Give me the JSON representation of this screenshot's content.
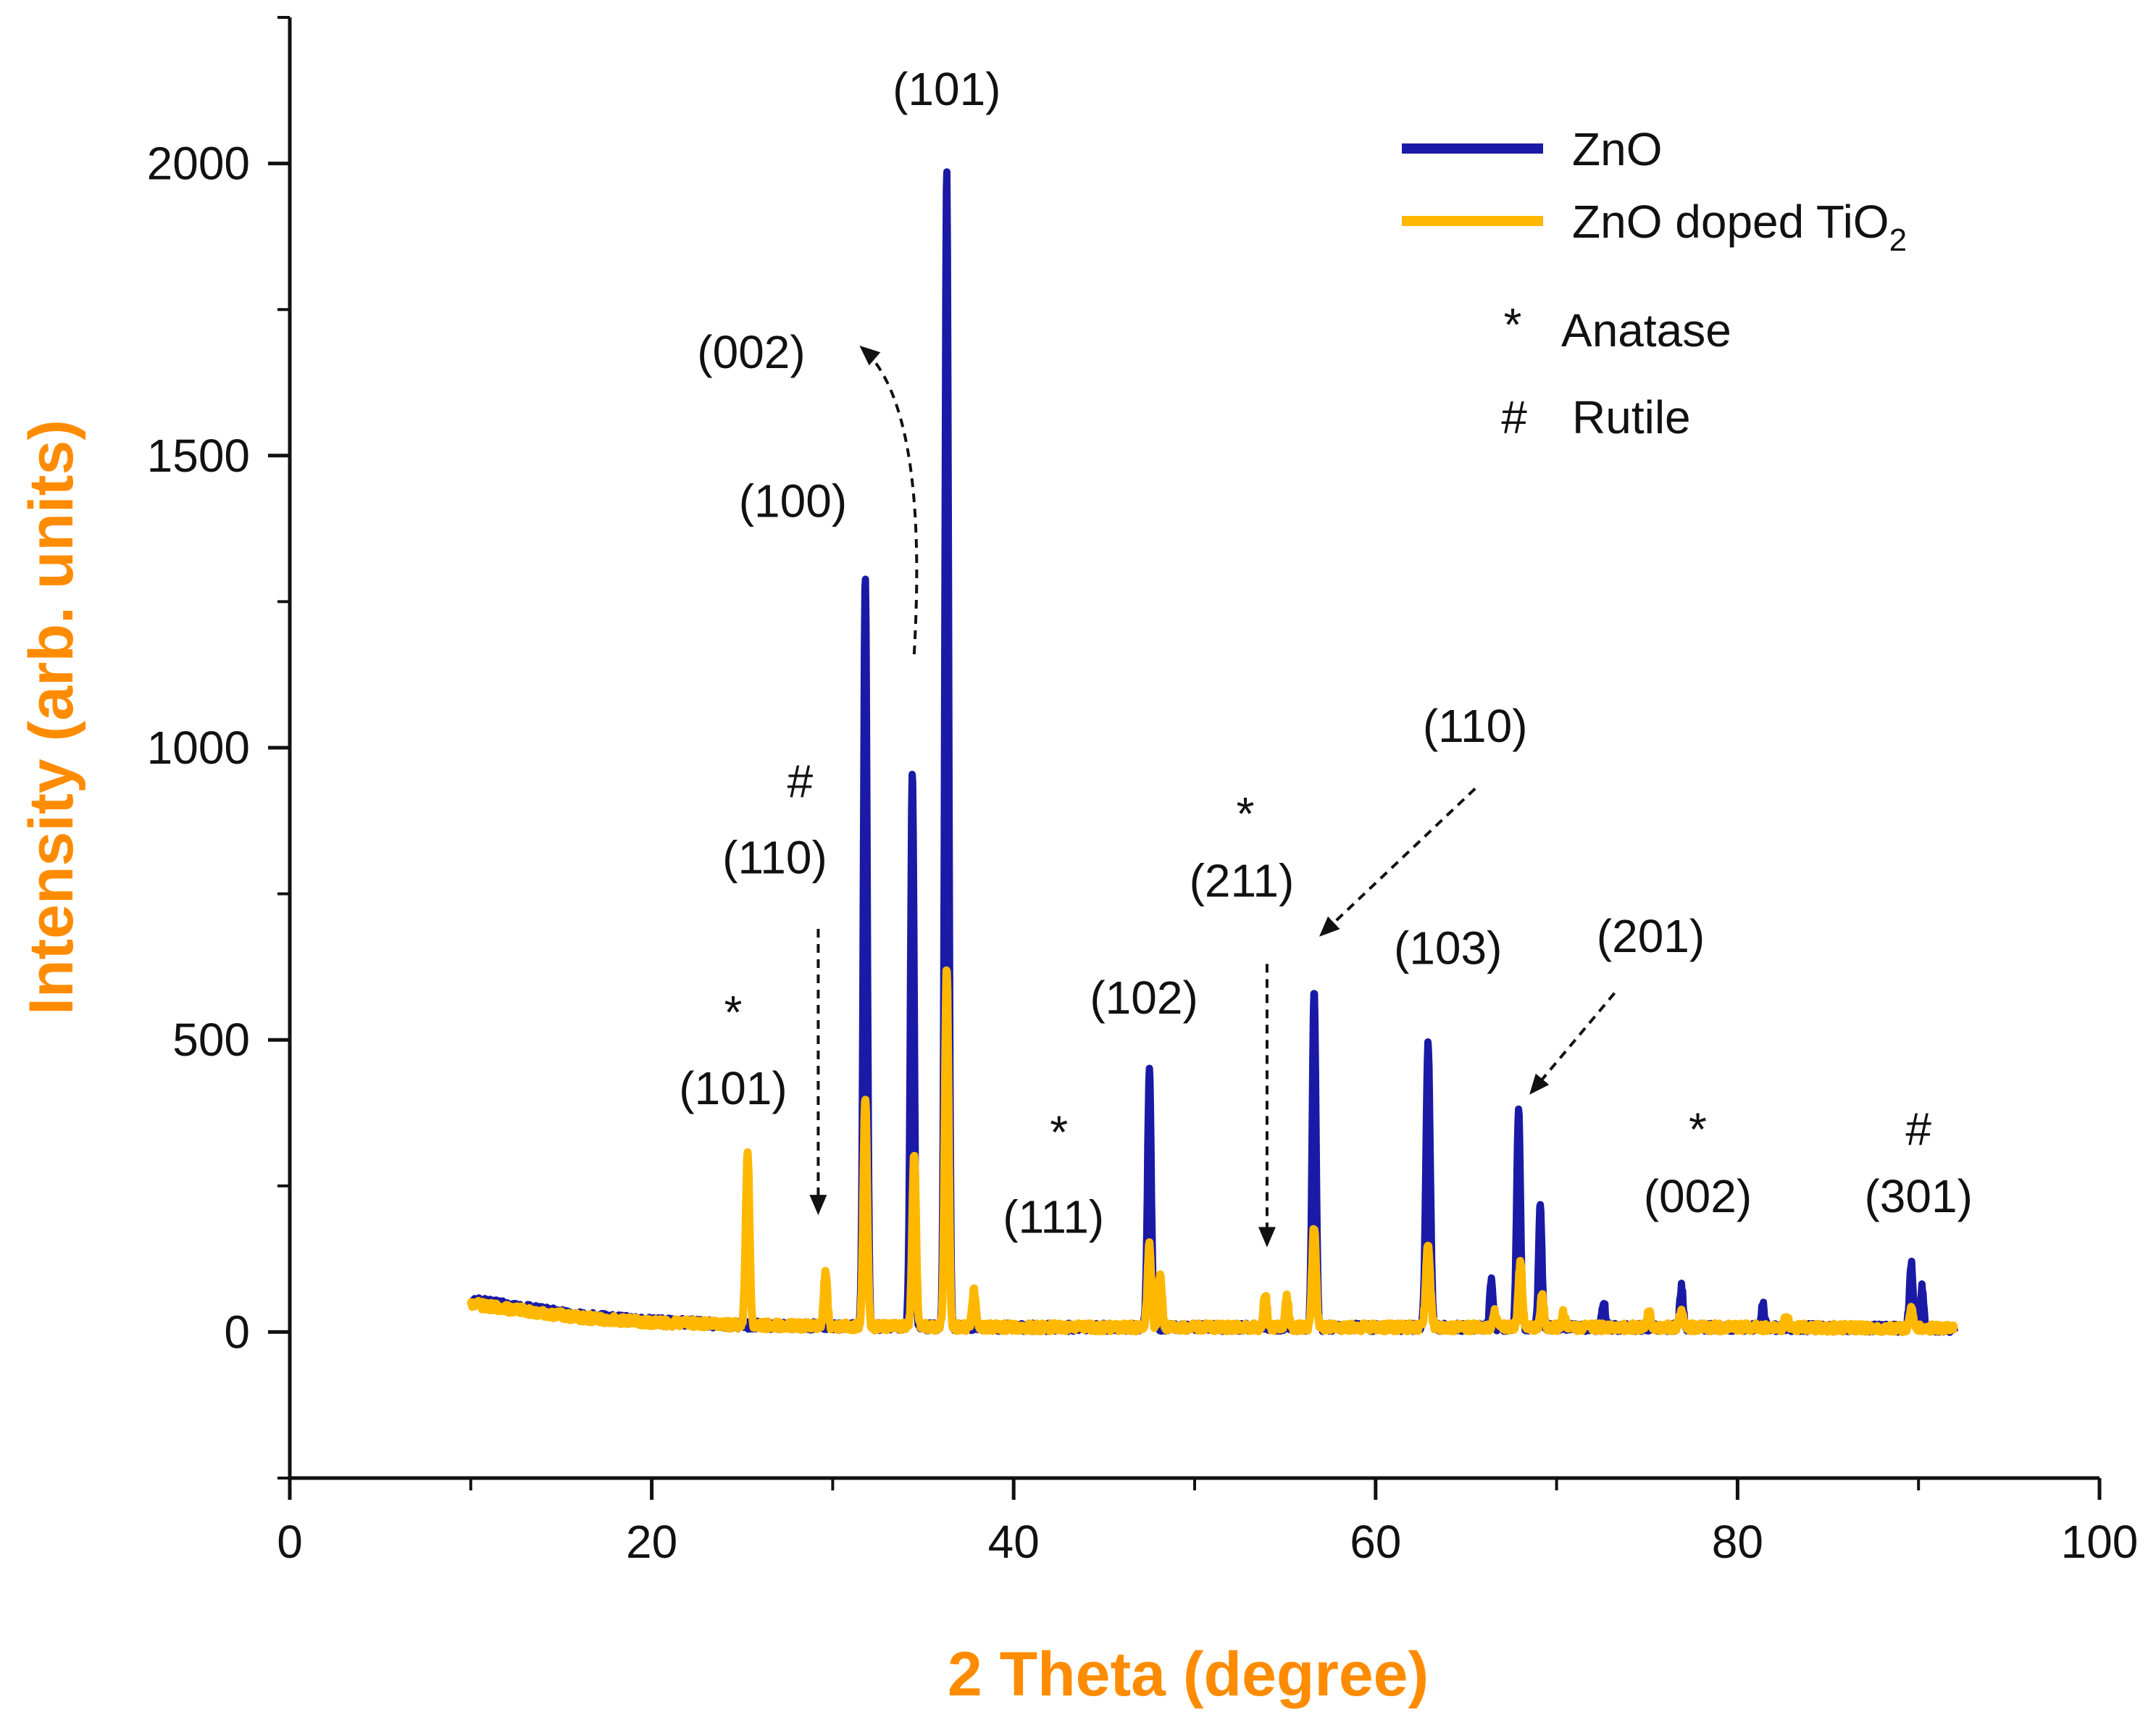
{
  "chart_data": {
    "type": "line",
    "title": "",
    "xlabel": "2 Theta (degree)",
    "ylabel": "Intensity (arb. units)",
    "xlim": [
      0,
      100
    ],
    "ylim": [
      -250,
      2250
    ],
    "xticks": [
      0,
      20,
      40,
      60,
      80,
      100
    ],
    "yticks": [
      0,
      500,
      1000,
      1500,
      2000
    ],
    "legend": {
      "placement": "top-right",
      "entries": [
        {
          "name": "ZnO",
          "color": "#1a1aa6"
        },
        {
          "name": "ZnO doped TiO",
          "subscript": "2",
          "color": "#ffb800"
        }
      ],
      "symbols": [
        {
          "symbol": "*",
          "label": "Anatase"
        },
        {
          "symbol": "#",
          "label": "Rutile"
        }
      ]
    },
    "series": [
      {
        "name": "ZnO",
        "color": "#1a1aa6",
        "baseline": [
          [
            10,
            55
          ],
          [
            12,
            45
          ],
          [
            16,
            28
          ],
          [
            20,
            18
          ],
          [
            25,
            12
          ],
          [
            30,
            10
          ],
          [
            40,
            8
          ],
          [
            50,
            8
          ],
          [
            60,
            8
          ],
          [
            70,
            8
          ],
          [
            80,
            8
          ],
          [
            92,
            6
          ]
        ],
        "peaks": [
          {
            "x": 31.8,
            "y": 1290,
            "w": 0.22
          },
          {
            "x": 34.4,
            "y": 950,
            "w": 0.22
          },
          {
            "x": 36.3,
            "y": 1980,
            "w": 0.22
          },
          {
            "x": 47.5,
            "y": 440,
            "w": 0.22
          },
          {
            "x": 56.6,
            "y": 580,
            "w": 0.22
          },
          {
            "x": 62.9,
            "y": 485,
            "w": 0.25
          },
          {
            "x": 66.4,
            "y": 80,
            "w": 0.2
          },
          {
            "x": 67.9,
            "y": 375,
            "w": 0.22
          },
          {
            "x": 69.1,
            "y": 210,
            "w": 0.2
          },
          {
            "x": 72.6,
            "y": 45,
            "w": 0.2
          },
          {
            "x": 76.9,
            "y": 70,
            "w": 0.2
          },
          {
            "x": 81.4,
            "y": 38,
            "w": 0.2
          },
          {
            "x": 89.6,
            "y": 110,
            "w": 0.22
          },
          {
            "x": 90.2,
            "y": 70,
            "w": 0.18
          }
        ]
      },
      {
        "name": "ZnO doped TiO2",
        "color": "#ffb800",
        "baseline": [
          [
            10,
            48
          ],
          [
            12,
            40
          ],
          [
            16,
            25
          ],
          [
            20,
            16
          ],
          [
            25,
            12
          ],
          [
            30,
            10
          ],
          [
            40,
            8
          ],
          [
            50,
            8
          ],
          [
            60,
            8
          ],
          [
            70,
            8
          ],
          [
            80,
            8
          ],
          [
            92,
            6
          ]
        ],
        "peaks": [
          {
            "x": 25.3,
            "y": 295,
            "w": 0.22
          },
          {
            "x": 29.6,
            "y": 95,
            "w": 0.2
          },
          {
            "x": 31.8,
            "y": 395,
            "w": 0.22
          },
          {
            "x": 34.5,
            "y": 300,
            "w": 0.22
          },
          {
            "x": 36.3,
            "y": 615,
            "w": 0.22
          },
          {
            "x": 37.8,
            "y": 65,
            "w": 0.2
          },
          {
            "x": 47.5,
            "y": 140,
            "w": 0.22
          },
          {
            "x": 48.1,
            "y": 90,
            "w": 0.2
          },
          {
            "x": 53.9,
            "y": 55,
            "w": 0.2
          },
          {
            "x": 55.1,
            "y": 50,
            "w": 0.2
          },
          {
            "x": 56.6,
            "y": 175,
            "w": 0.22
          },
          {
            "x": 62.9,
            "y": 140,
            "w": 0.25
          },
          {
            "x": 66.6,
            "y": 25,
            "w": 0.2
          },
          {
            "x": 68.0,
            "y": 110,
            "w": 0.22
          },
          {
            "x": 69.2,
            "y": 55,
            "w": 0.2
          },
          {
            "x": 70.4,
            "y": 25,
            "w": 0.2
          },
          {
            "x": 75.1,
            "y": 25,
            "w": 0.2
          },
          {
            "x": 76.9,
            "y": 30,
            "w": 0.2
          },
          {
            "x": 82.7,
            "y": 20,
            "w": 0.2
          },
          {
            "x": 89.6,
            "y": 35,
            "w": 0.2
          }
        ]
      }
    ],
    "annotations": [
      {
        "text": "(101)",
        "x": 36.3,
        "y": 2100
      },
      {
        "text": "(002)",
        "x": 25.5,
        "y": 1650
      },
      {
        "text": "(100)",
        "x": 27.8,
        "y": 1395
      },
      {
        "symbol": "#",
        "x": 28.2,
        "y": 915
      },
      {
        "text": "(110)",
        "x": 26.8,
        "y": 785
      },
      {
        "symbol": "*",
        "x": 24.5,
        "y": 520
      },
      {
        "text": "(101)",
        "x": 24.5,
        "y": 390
      },
      {
        "symbol": "*",
        "x": 42.5,
        "y": 315
      },
      {
        "text": "(111)",
        "x": 42.2,
        "y": 170
      },
      {
        "text": "(102)",
        "x": 47.2,
        "y": 545
      },
      {
        "symbol": "*",
        "x": 52.8,
        "y": 860
      },
      {
        "text": "(211)",
        "x": 52.6,
        "y": 745
      },
      {
        "text": "(110)",
        "x": 65.5,
        "y": 1010
      },
      {
        "text": "(103)",
        "x": 64.0,
        "y": 630
      },
      {
        "text": "(201)",
        "x": 75.2,
        "y": 650
      },
      {
        "symbol": "*",
        "x": 77.8,
        "y": 320
      },
      {
        "text": "(002)",
        "x": 77.8,
        "y": 205
      },
      {
        "symbol": "#",
        "x": 90.0,
        "y": 320
      },
      {
        "text": "(301)",
        "x": 90.0,
        "y": 205
      }
    ],
    "arrows": [
      {
        "from": [
          34.5,
          1160
        ],
        "to": [
          31.6,
          1685
        ],
        "style": "dashed-curved"
      },
      {
        "from": [
          29.2,
          690
        ],
        "to": [
          29.2,
          205
        ],
        "style": "dashed"
      },
      {
        "from": [
          54.0,
          630
        ],
        "to": [
          54.0,
          150
        ],
        "style": "dashed"
      },
      {
        "from": [
          65.5,
          930
        ],
        "to": [
          57.0,
          680
        ],
        "style": "dashed"
      },
      {
        "from": [
          73.2,
          580
        ],
        "to": [
          68.6,
          410
        ],
        "style": "dashed"
      }
    ]
  }
}
